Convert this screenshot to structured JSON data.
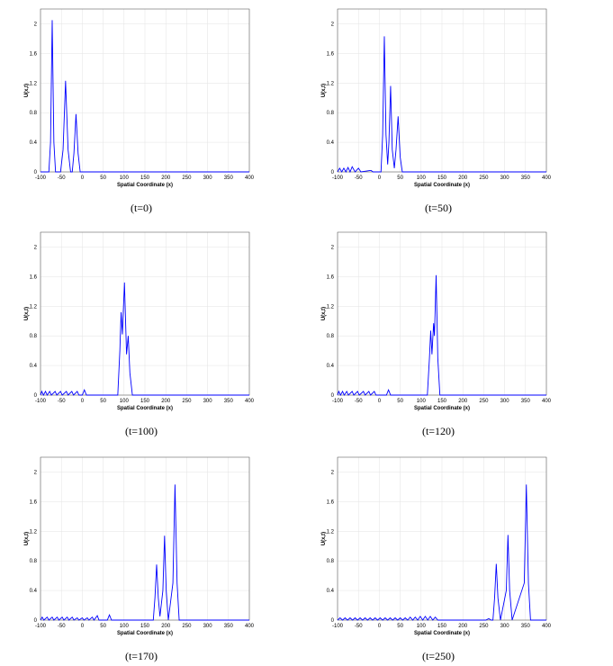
{
  "chart_data": [
    {
      "type": "line",
      "caption": "(t=0)",
      "x_label": "Spatial Coordinate (x)",
      "y_label": "U(x,t)",
      "xlim": [
        -100,
        400
      ],
      "ylim": [
        0,
        2.2
      ],
      "xticks": [
        -100,
        -50,
        0,
        50,
        100,
        150,
        200,
        250,
        300,
        350,
        400
      ],
      "yticks": [
        0,
        0.4,
        0.8,
        1.2,
        1.6,
        2
      ],
      "grid": true,
      "series": [
        {
          "color": "#0000ff",
          "x": [
            -100,
            -80,
            -76,
            -72,
            -68,
            -64,
            -52,
            -46,
            -40,
            -34,
            -28,
            -24,
            -20,
            -15,
            -10,
            -5,
            0,
            400
          ],
          "values": [
            0,
            0,
            0.4,
            2.05,
            0.4,
            0,
            0,
            0.3,
            1.23,
            0.3,
            0,
            0,
            0.25,
            0.78,
            0.25,
            0,
            0,
            0
          ]
        }
      ]
    },
    {
      "type": "line",
      "caption": "(t=50)",
      "x_label": "Spatial Coordinate (x)",
      "y_label": "U(x,t)",
      "xlim": [
        -100,
        400
      ],
      "ylim": [
        0,
        2.2
      ],
      "xticks": [
        -100,
        -50,
        0,
        50,
        100,
        150,
        200,
        250,
        300,
        350,
        400
      ],
      "yticks": [
        0,
        0.4,
        0.8,
        1.2,
        1.6,
        2
      ],
      "grid": true,
      "series": [
        {
          "color": "#0000ff",
          "x": [
            -100,
            -95,
            -90,
            -85,
            -80,
            -75,
            -70,
            -65,
            -58,
            -50,
            -44,
            -20,
            -15,
            4,
            8,
            12,
            16,
            20,
            23,
            27,
            31,
            36,
            40,
            45,
            50,
            55,
            400
          ],
          "values": [
            0,
            0.05,
            0,
            0.05,
            0,
            0.06,
            0,
            0.07,
            0,
            0.05,
            0,
            0.02,
            0,
            0,
            0.5,
            1.83,
            0.5,
            0.1,
            0.4,
            1.16,
            0.3,
            0.05,
            0.3,
            0.75,
            0.2,
            0,
            0
          ]
        }
      ]
    },
    {
      "type": "line",
      "caption": "(t=100)",
      "x_label": "Spatial Coordinate (x)",
      "y_label": "U(x,t)",
      "xlim": [
        -100,
        400
      ],
      "ylim": [
        0,
        2.2
      ],
      "xticks": [
        -100,
        -50,
        0,
        50,
        100,
        150,
        200,
        250,
        300,
        350,
        400
      ],
      "yticks": [
        0,
        0.4,
        0.8,
        1.2,
        1.6,
        2
      ],
      "grid": true,
      "series": [
        {
          "color": "#0000ff",
          "x": [
            -100,
            -97,
            -93,
            -88,
            -84,
            -78,
            -74,
            -65,
            -61,
            -52,
            -48,
            -38,
            -34,
            -25,
            -21,
            -12,
            -8,
            0,
            5,
            10,
            85,
            90,
            93,
            96,
            101,
            106,
            110,
            114,
            120,
            400
          ],
          "values": [
            0,
            0.05,
            0,
            0.05,
            0,
            0.05,
            0,
            0.05,
            0,
            0.05,
            0,
            0.05,
            0,
            0.05,
            0,
            0.05,
            0,
            0,
            0.07,
            0,
            0,
            0.6,
            1.12,
            0.82,
            1.52,
            0.55,
            0.8,
            0.3,
            0,
            0
          ]
        }
      ]
    },
    {
      "type": "line",
      "caption": "(t=120)",
      "x_label": "Spatial Coordinate (x)",
      "y_label": "U(x,t)",
      "xlim": [
        -100,
        400
      ],
      "ylim": [
        0,
        2.2
      ],
      "xticks": [
        -100,
        -50,
        0,
        50,
        100,
        150,
        200,
        250,
        300,
        350,
        400
      ],
      "yticks": [
        0,
        0.4,
        0.8,
        1.2,
        1.6,
        2
      ],
      "grid": true,
      "series": [
        {
          "color": "#0000ff",
          "x": [
            -100,
            -97,
            -93,
            -88,
            -84,
            -78,
            -74,
            -65,
            -61,
            -52,
            -48,
            -38,
            -34,
            -25,
            -21,
            -12,
            -8,
            0,
            17,
            22,
            27,
            115,
            120,
            123,
            126,
            130,
            132,
            136,
            140,
            145,
            400
          ],
          "values": [
            0,
            0.05,
            0,
            0.05,
            0,
            0.05,
            0,
            0.05,
            0,
            0.05,
            0,
            0.05,
            0,
            0.05,
            0,
            0.05,
            0,
            0,
            0,
            0.07,
            0,
            0,
            0.5,
            0.87,
            0.55,
            0.97,
            0.8,
            1.62,
            0.5,
            0,
            0
          ]
        }
      ]
    },
    {
      "type": "line",
      "caption": "(t=170)",
      "x_label": "Spatial Coordinate (x)",
      "y_label": "U(x,t)",
      "xlim": [
        -100,
        400
      ],
      "ylim": [
        0,
        2.2
      ],
      "xticks": [
        -100,
        -50,
        0,
        50,
        100,
        150,
        200,
        250,
        300,
        350,
        400
      ],
      "yticks": [
        0,
        0.4,
        0.8,
        1.2,
        1.6,
        2
      ],
      "grid": true,
      "series": [
        {
          "color": "#0000ff",
          "x": [
            -100,
            -96,
            -92,
            -84,
            -80,
            -72,
            -68,
            -60,
            -56,
            -48,
            -44,
            -36,
            -32,
            -24,
            -20,
            -12,
            -8,
            0,
            4,
            12,
            16,
            24,
            28,
            36,
            40,
            46,
            60,
            65,
            70,
            170,
            174,
            178,
            182,
            186,
            193,
            197,
            201,
            206,
            217,
            222,
            227,
            232,
            400
          ],
          "values": [
            0,
            0.04,
            0,
            0.04,
            0,
            0.04,
            0,
            0.04,
            0,
            0.04,
            0,
            0.04,
            0,
            0.04,
            0,
            0.03,
            0,
            0.03,
            0,
            0.03,
            0,
            0.04,
            0,
            0.06,
            0,
            0,
            0,
            0.07,
            0,
            0,
            0.3,
            0.75,
            0.3,
            0.05,
            0.4,
            1.14,
            0.4,
            0,
            0.5,
            1.83,
            0.5,
            0,
            0
          ]
        }
      ]
    },
    {
      "type": "line",
      "caption": "(t=250)",
      "x_label": "Spatial Coordinate (x)",
      "y_label": "U(x,t)",
      "xlim": [
        -100,
        400
      ],
      "ylim": [
        0,
        2.2
      ],
      "xticks": [
        -100,
        -50,
        0,
        50,
        100,
        150,
        200,
        250,
        300,
        350,
        400
      ],
      "yticks": [
        0,
        0.4,
        0.8,
        1.2,
        1.6,
        2
      ],
      "grid": true,
      "series": [
        {
          "color": "#0000ff",
          "x": [
            -100,
            -94,
            -88,
            -82,
            -76,
            -70,
            -64,
            -58,
            -52,
            -46,
            -40,
            -34,
            -28,
            -22,
            -16,
            -10,
            -4,
            2,
            8,
            14,
            20,
            26,
            32,
            38,
            44,
            50,
            56,
            62,
            68,
            74,
            80,
            86,
            92,
            98,
            104,
            110,
            116,
            122,
            128,
            134,
            140,
            146,
            255,
            262,
            268,
            272,
            276,
            280,
            284,
            290,
            304,
            308,
            312,
            318,
            347,
            352,
            357,
            362,
            400
          ],
          "values": [
            0,
            0.03,
            0,
            0.03,
            0,
            0.03,
            0,
            0.03,
            0,
            0.03,
            0,
            0.03,
            0,
            0.03,
            0,
            0.03,
            0,
            0.03,
            0,
            0.03,
            0,
            0.03,
            0,
            0.03,
            0,
            0.03,
            0,
            0.03,
            0,
            0.04,
            0,
            0.04,
            0,
            0.05,
            0,
            0.05,
            0,
            0.05,
            0,
            0.04,
            0,
            0,
            0,
            0.02,
            0,
            0,
            0.3,
            0.76,
            0.3,
            0,
            0.4,
            1.15,
            0.4,
            0,
            0.5,
            1.83,
            0.5,
            0,
            0
          ]
        }
      ]
    }
  ]
}
